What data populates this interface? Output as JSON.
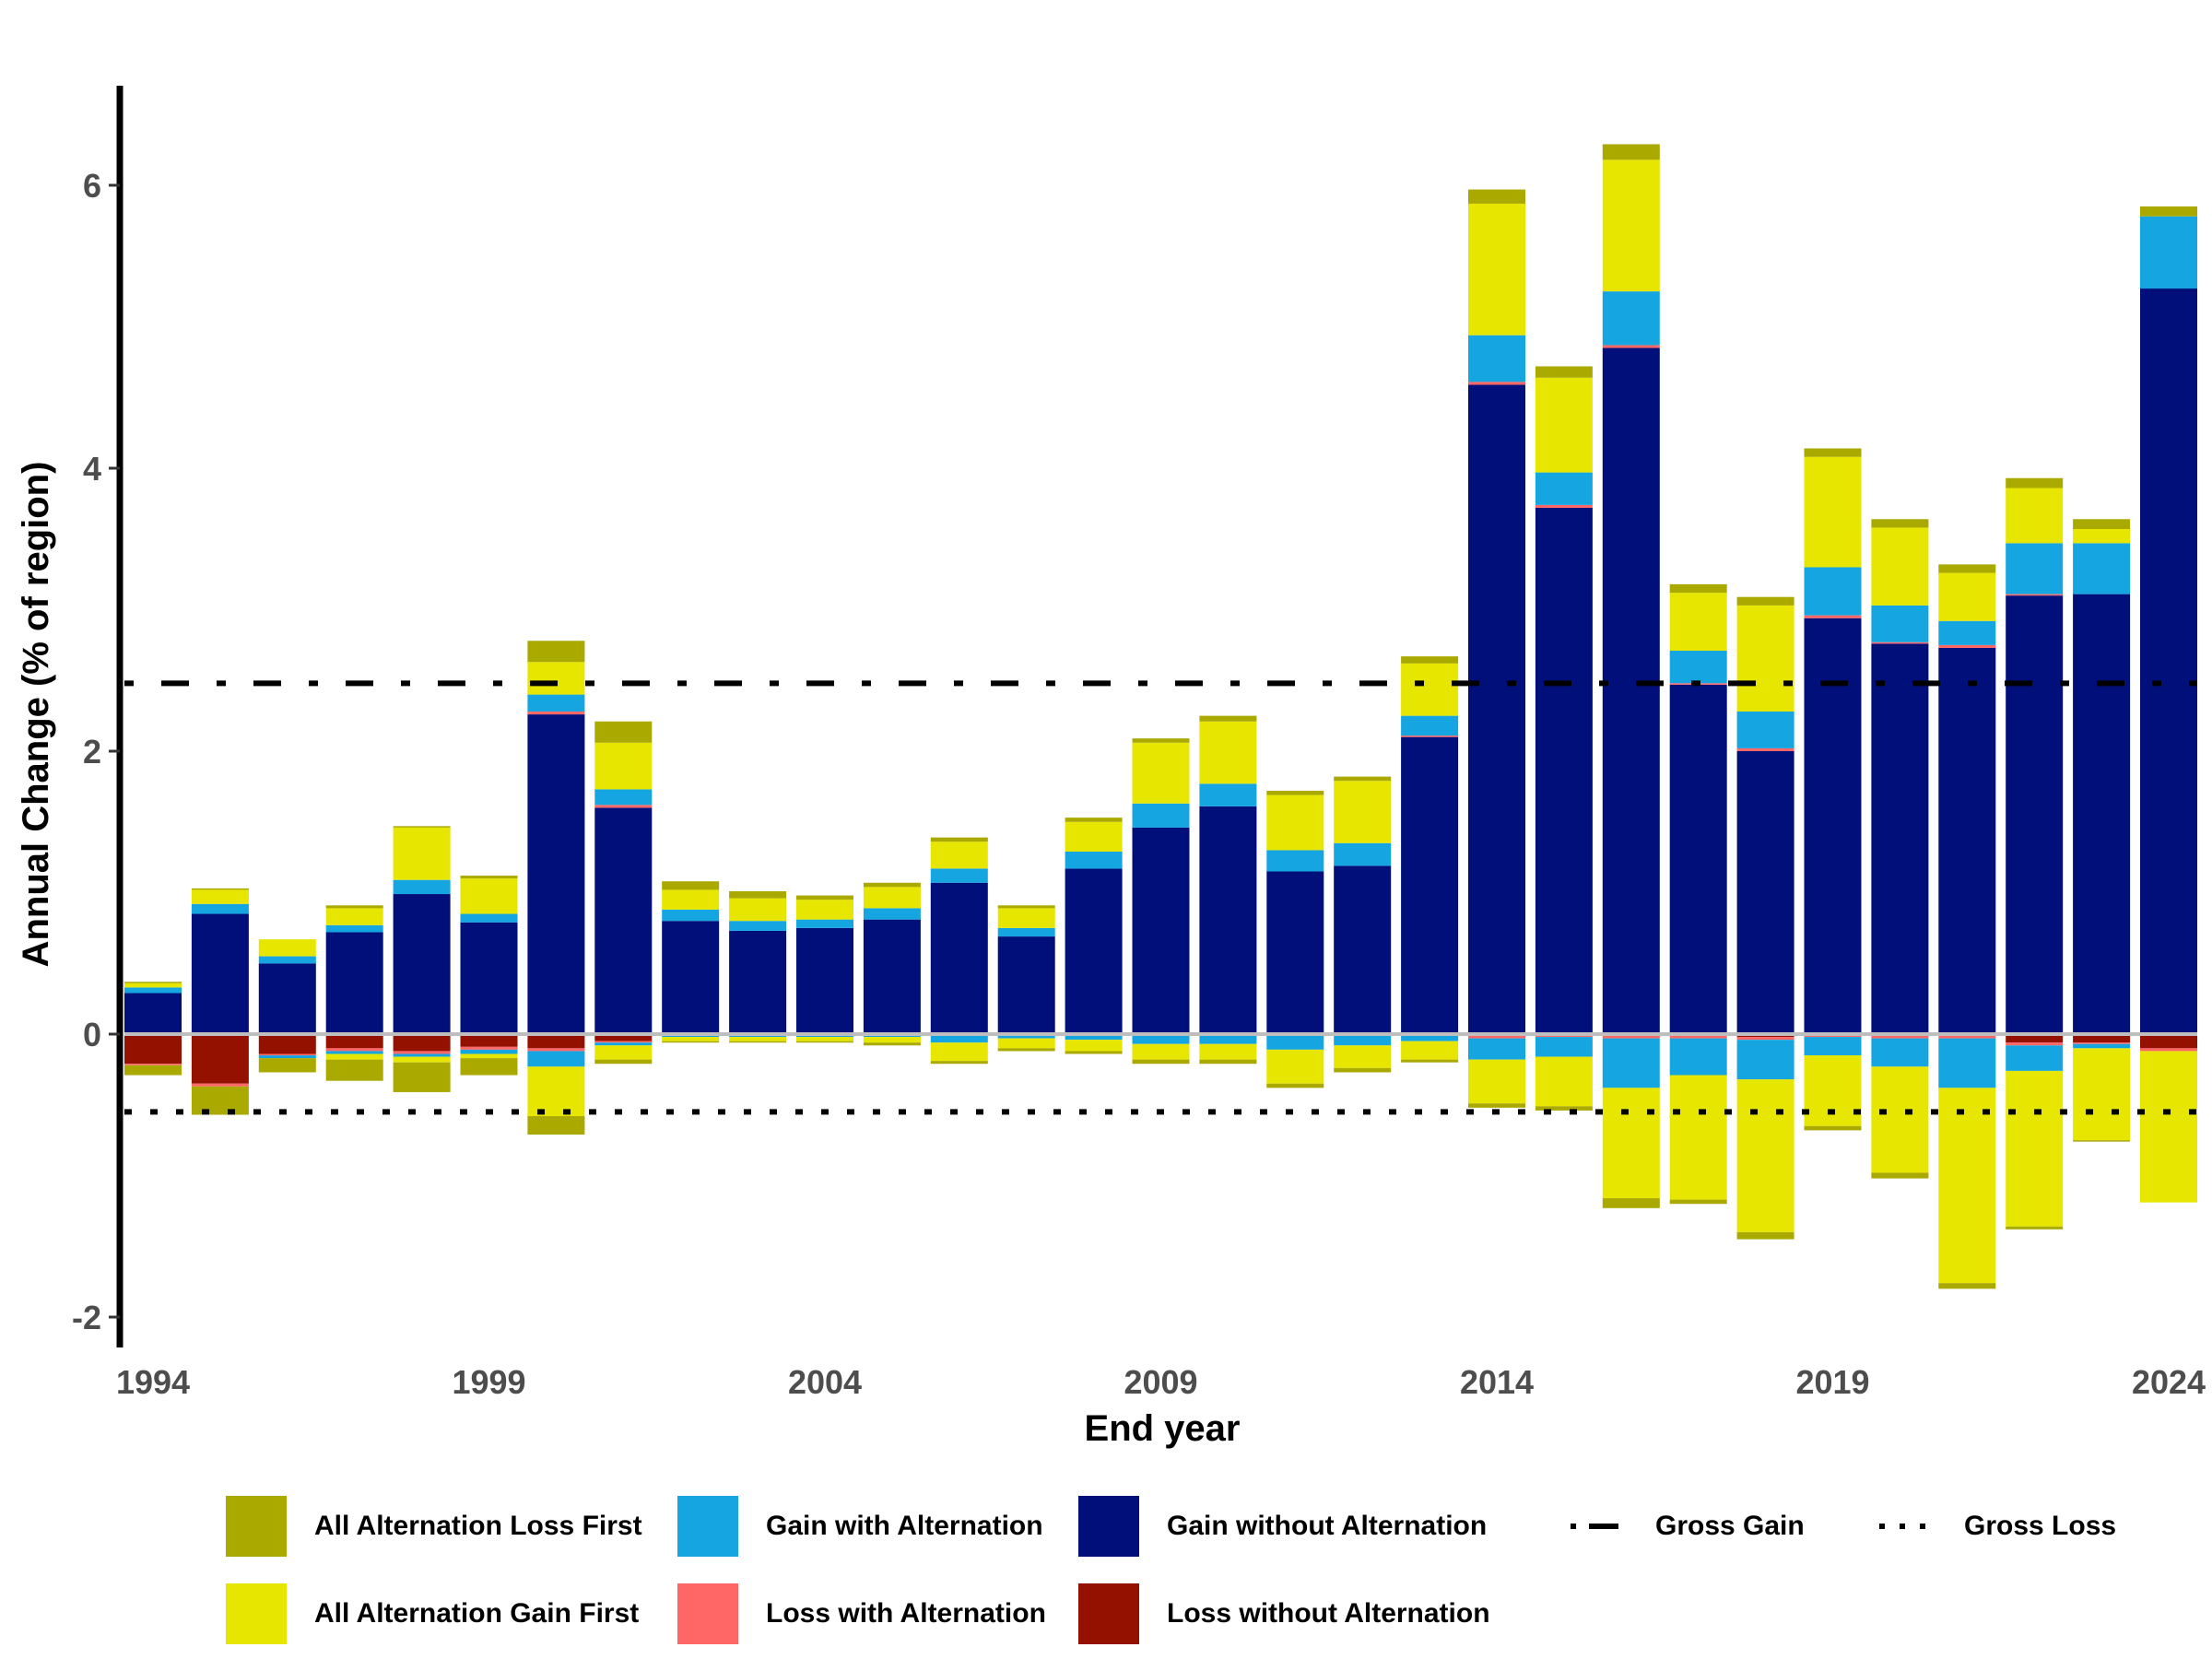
{
  "chart_data": {
    "type": "bar",
    "stacked": true,
    "title": "",
    "xlabel": "End year",
    "ylabel": "Annual Change (% of region)",
    "ylim": [
      -2.2,
      6.7
    ],
    "yticks": [
      -2,
      0,
      2,
      4,
      6
    ],
    "ytick_labels": [
      "-2",
      "0",
      "2",
      "4",
      "6"
    ],
    "xtick_labels": [
      "1994",
      "1999",
      "2004",
      "2009",
      "2014",
      "2019",
      "2024"
    ],
    "xtick_years": [
      1994,
      1999,
      2004,
      2009,
      2014,
      2019,
      2024
    ],
    "categories": [
      1994,
      1995,
      1996,
      1997,
      1998,
      1999,
      2000,
      2001,
      2002,
      2003,
      2004,
      2005,
      2006,
      2007,
      2008,
      2009,
      2010,
      2011,
      2012,
      2013,
      2014,
      2015,
      2016,
      2017,
      2018,
      2019,
      2020,
      2021,
      2022,
      2023,
      2024
    ],
    "positive_series": [
      {
        "name": "Gain without Alternation",
        "color": "#000f7a",
        "values": [
          0.29,
          0.85,
          0.5,
          0.72,
          0.99,
          0.79,
          2.26,
          1.6,
          0.8,
          0.73,
          0.75,
          0.81,
          1.07,
          0.69,
          1.17,
          1.46,
          1.61,
          1.15,
          1.19,
          2.1,
          4.59,
          3.72,
          4.85,
          2.47,
          2.0,
          2.94,
          2.76,
          2.73,
          3.1,
          3.11,
          5.27
        ]
      },
      {
        "name": "Loss with Alternation",
        "color": "#ff6666",
        "values": [
          0,
          0,
          0,
          0,
          0,
          0,
          0.02,
          0.02,
          0,
          0,
          0,
          0,
          0,
          0,
          0,
          0,
          0,
          0,
          0,
          0.01,
          0.02,
          0.02,
          0.02,
          0.01,
          0.02,
          0.02,
          0.01,
          0.02,
          0.01,
          0,
          0
        ]
      },
      {
        "name": "Gain with Alternation",
        "color": "#15a6e1",
        "values": [
          0.04,
          0.07,
          0.05,
          0.05,
          0.1,
          0.06,
          0.12,
          0.11,
          0.08,
          0.07,
          0.06,
          0.08,
          0.1,
          0.06,
          0.12,
          0.17,
          0.16,
          0.15,
          0.16,
          0.14,
          0.33,
          0.23,
          0.38,
          0.23,
          0.26,
          0.34,
          0.26,
          0.17,
          0.36,
          0.36,
          0.51
        ]
      },
      {
        "name": "All Alternation Gain First",
        "color": "#e6e600",
        "values": [
          0.03,
          0.1,
          0.12,
          0.12,
          0.37,
          0.25,
          0.23,
          0.33,
          0.14,
          0.16,
          0.14,
          0.15,
          0.19,
          0.14,
          0.21,
          0.43,
          0.44,
          0.39,
          0.44,
          0.37,
          0.93,
          0.67,
          0.93,
          0.41,
          0.75,
          0.78,
          0.55,
          0.34,
          0.39,
          0.1,
          0
        ]
      },
      {
        "name": "All Alternation Loss First",
        "color": "#a9a900",
        "values": [
          0.01,
          0.01,
          0,
          0.02,
          0.01,
          0.02,
          0.15,
          0.15,
          0.06,
          0.05,
          0.03,
          0.03,
          0.03,
          0.02,
          0.03,
          0.03,
          0.04,
          0.03,
          0.03,
          0.05,
          0.1,
          0.08,
          0.11,
          0.06,
          0.06,
          0.06,
          0.06,
          0.06,
          0.07,
          0.07,
          0.07
        ]
      }
    ],
    "negative_series": [
      {
        "name": "Loss without Alternation",
        "color": "#941100",
        "values": [
          -0.21,
          -0.35,
          -0.14,
          -0.1,
          -0.12,
          -0.09,
          -0.1,
          -0.05,
          -0.01,
          -0.01,
          -0.01,
          -0.01,
          -0.01,
          -0.01,
          -0.01,
          -0.01,
          -0.01,
          -0.01,
          -0.01,
          -0.01,
          -0.01,
          -0.01,
          -0.01,
          -0.01,
          -0.02,
          -0.01,
          -0.01,
          -0.01,
          -0.06,
          -0.06,
          -0.1
        ]
      },
      {
        "name": "Loss with Alternation",
        "color": "#ff6666",
        "values": [
          -0.01,
          -0.02,
          -0.01,
          -0.02,
          -0.02,
          -0.02,
          -0.02,
          -0.01,
          0,
          0,
          0,
          0,
          0,
          0,
          0,
          0,
          0,
          0,
          0,
          0,
          -0.02,
          -0.01,
          -0.02,
          -0.02,
          -0.02,
          -0.01,
          -0.02,
          -0.02,
          -0.02,
          -0.01,
          -0.02
        ]
      },
      {
        "name": "Gain with Alternation",
        "color": "#15a6e1",
        "values": [
          0,
          0,
          -0.02,
          -0.02,
          -0.02,
          -0.03,
          -0.11,
          -0.02,
          -0.01,
          -0.01,
          -0.01,
          -0.01,
          -0.05,
          -0.02,
          -0.03,
          -0.06,
          -0.06,
          -0.1,
          -0.07,
          -0.04,
          -0.15,
          -0.14,
          -0.35,
          -0.26,
          -0.28,
          -0.13,
          -0.2,
          -0.35,
          -0.18,
          -0.03,
          0
        ]
      },
      {
        "name": "All Alternation Gain First",
        "color": "#e6e600",
        "values": [
          0,
          0,
          0,
          -0.04,
          -0.04,
          -0.03,
          -0.35,
          -0.1,
          -0.03,
          -0.03,
          -0.03,
          -0.04,
          -0.13,
          -0.07,
          -0.08,
          -0.11,
          -0.11,
          -0.24,
          -0.16,
          -0.13,
          -0.31,
          -0.35,
          -0.78,
          -0.88,
          -1.08,
          -0.5,
          -0.75,
          -1.38,
          -1.1,
          -0.65,
          -1.07
        ]
      },
      {
        "name": "All Alternation Loss First",
        "color": "#a9a900",
        "values": [
          -0.07,
          -0.2,
          -0.1,
          -0.15,
          -0.21,
          -0.12,
          -0.13,
          -0.03,
          -0.01,
          -0.01,
          -0.01,
          -0.02,
          -0.02,
          -0.02,
          -0.02,
          -0.03,
          -0.03,
          -0.03,
          -0.03,
          -0.02,
          -0.03,
          -0.03,
          -0.07,
          -0.03,
          -0.05,
          -0.03,
          -0.04,
          -0.04,
          -0.02,
          -0.01,
          0
        ]
      }
    ],
    "reference_lines": [
      {
        "name": "Gross Gain",
        "value": 2.48,
        "style": "dashdot",
        "color": "#000000"
      },
      {
        "name": "Gross Loss",
        "value": -0.55,
        "style": "dotted",
        "color": "#000000"
      }
    ],
    "zero_line_color": "#bebebe",
    "grid": false,
    "legend_position": "bottom"
  },
  "legend": {
    "items": [
      {
        "label": "All Alternation Loss First",
        "color": "#a9a900",
        "kind": "box"
      },
      {
        "label": "All Alternation Gain First",
        "color": "#e6e600",
        "kind": "box"
      },
      {
        "label": "Gain with Alternation",
        "color": "#15a6e1",
        "kind": "box"
      },
      {
        "label": "Loss with Alternation",
        "color": "#ff6666",
        "kind": "box"
      },
      {
        "label": "Gain without Alternation",
        "color": "#000f7a",
        "kind": "box"
      },
      {
        "label": "Loss without Alternation",
        "color": "#941100",
        "kind": "box"
      },
      {
        "label": "Gross Gain",
        "kind": "dashdot-line"
      },
      {
        "label": "Gross Loss",
        "kind": "dotted-line"
      }
    ]
  }
}
